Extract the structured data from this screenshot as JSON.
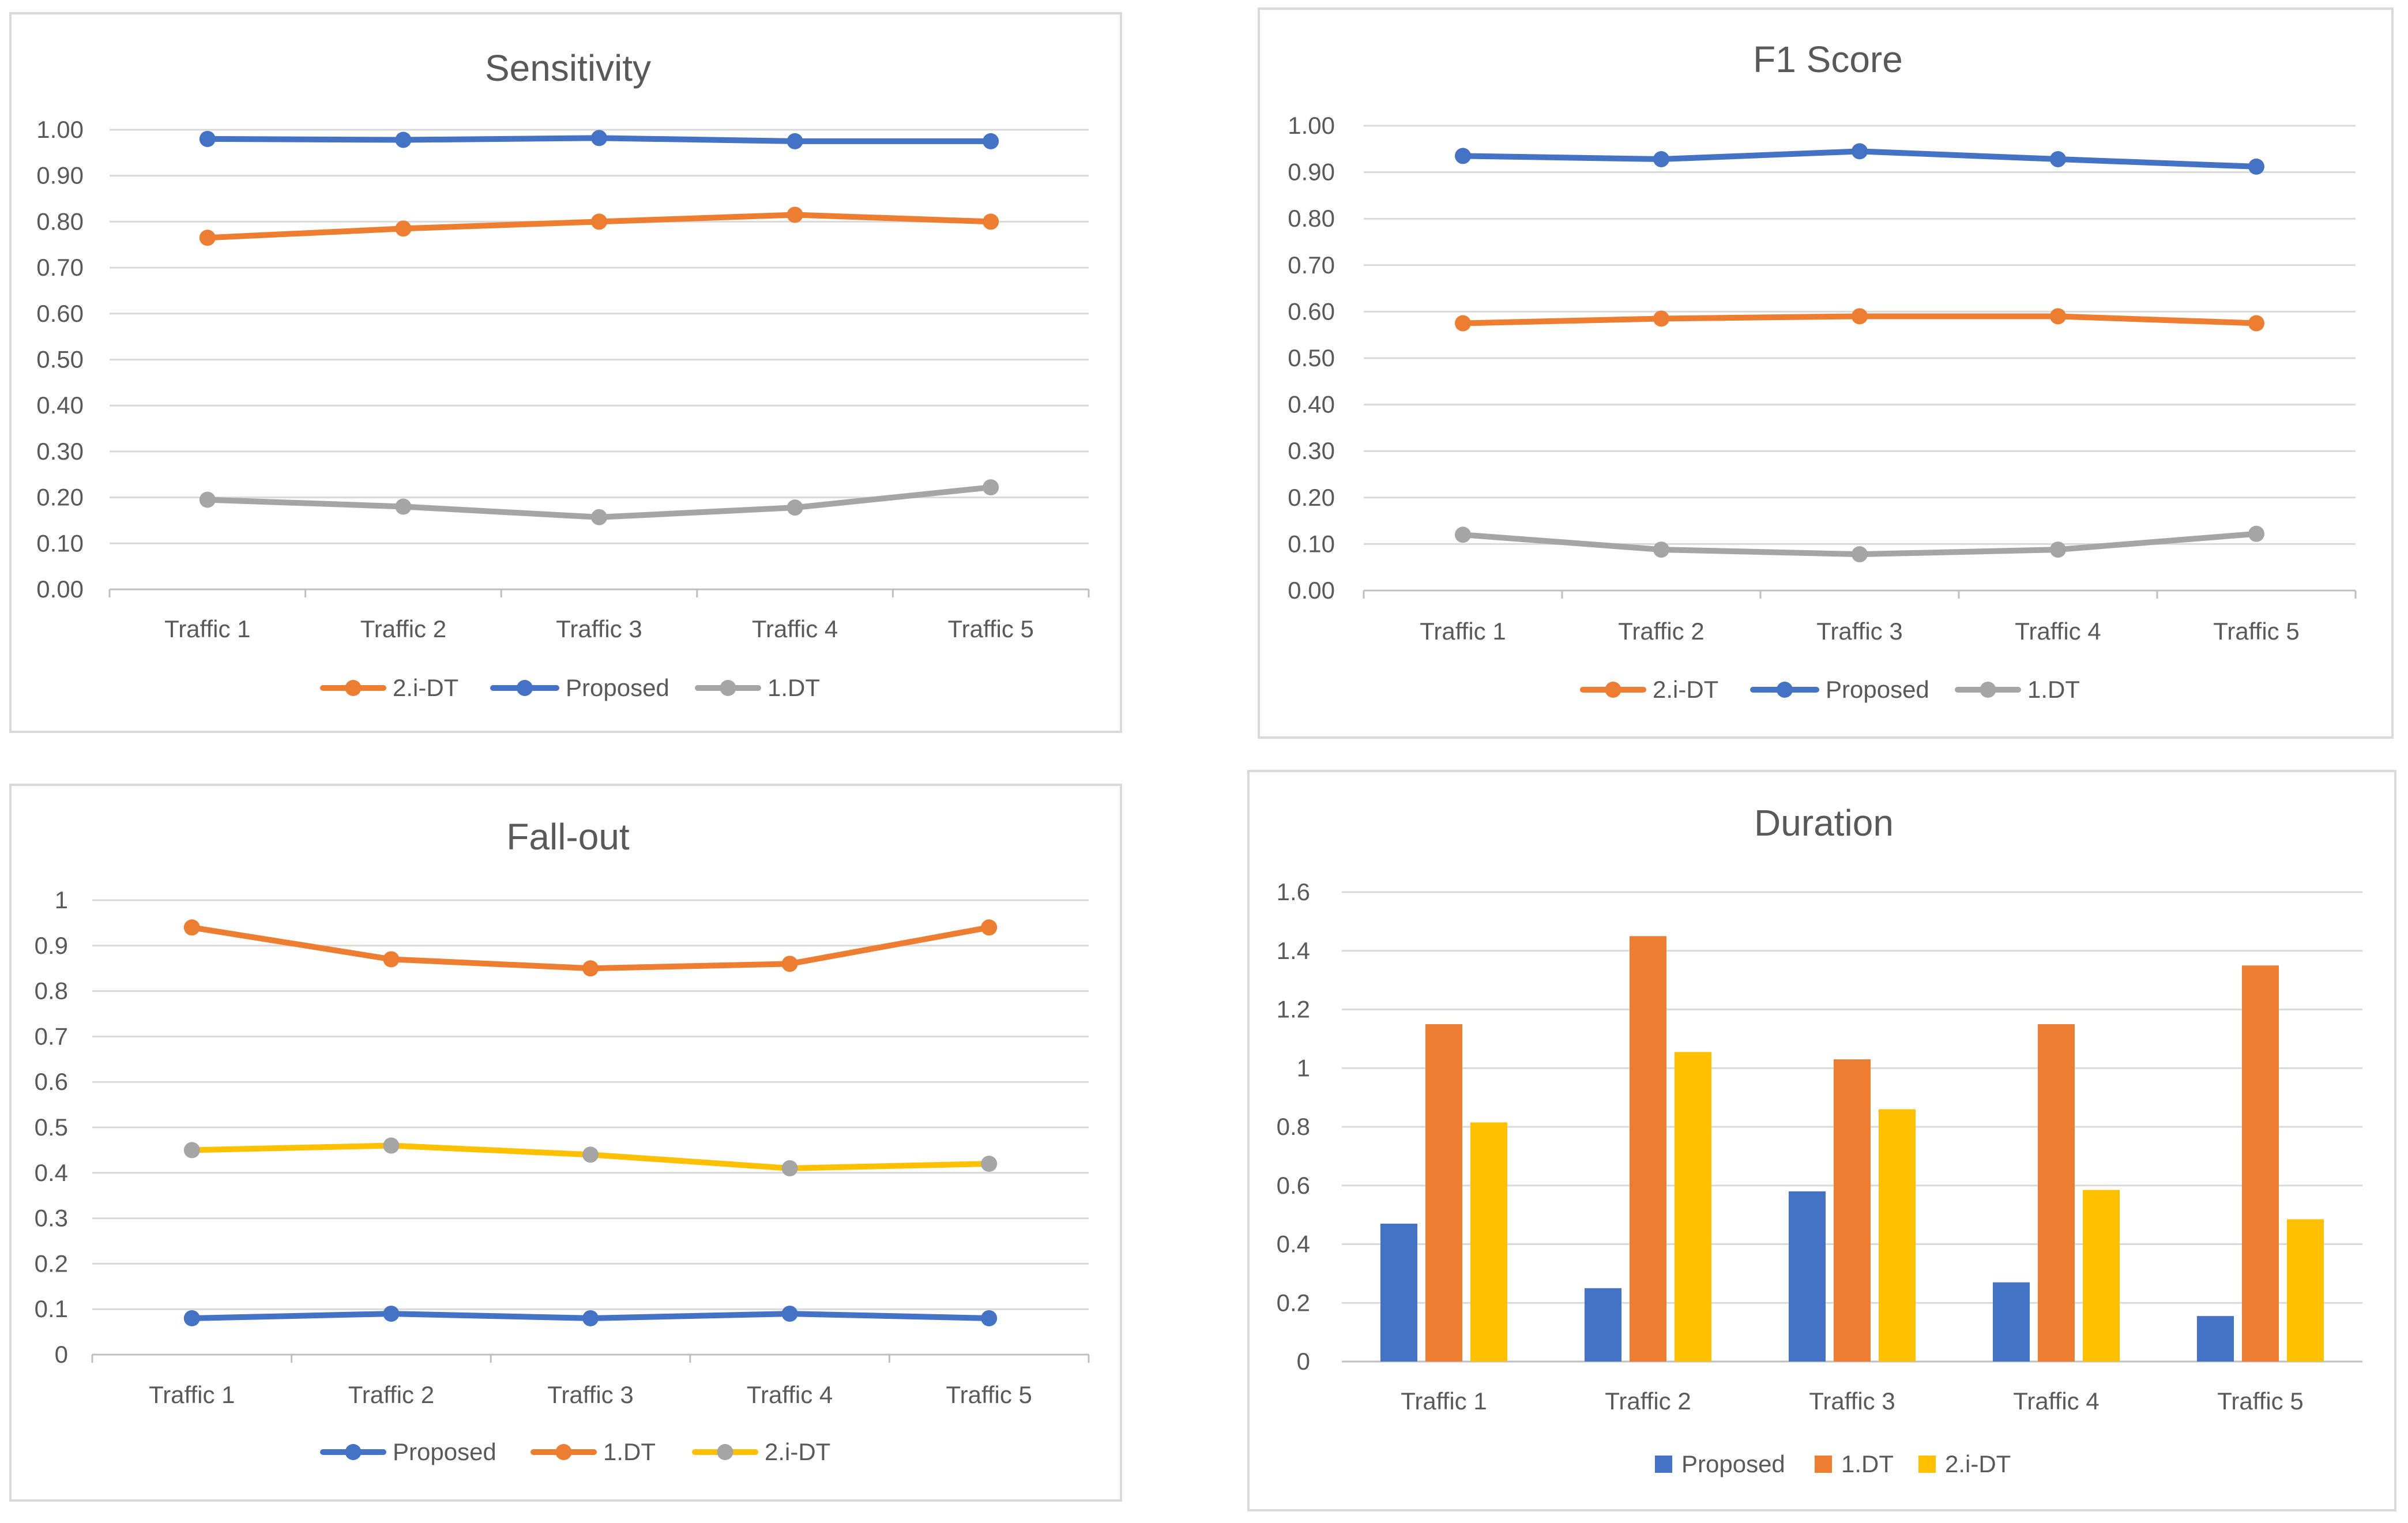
{
  "chart_data": [
    {
      "id": "sensitivity",
      "type": "line",
      "title": "Sensitivity",
      "categories": [
        "Traffic 1",
        "Traffic 2",
        "Traffic 3",
        "Traffic 4",
        "Traffic 5"
      ],
      "ylim": [
        0,
        1
      ],
      "yticks": [
        "0.00",
        "0.10",
        "0.20",
        "0.30",
        "0.40",
        "0.50",
        "0.60",
        "0.70",
        "0.80",
        "0.90",
        "1.00"
      ],
      "grid": true,
      "legend_position": "bottom",
      "series": [
        {
          "name": "2.i-DT",
          "color": "#ED7D31",
          "marker_color": "#ED7D31",
          "values": [
            0.765,
            0.785,
            0.8,
            0.815,
            0.8
          ]
        },
        {
          "name": "Proposed",
          "color": "#4472C4",
          "marker_color": "#4472C4",
          "values": [
            0.98,
            0.978,
            0.982,
            0.975,
            0.975
          ]
        },
        {
          "name": "1.DT",
          "color": "#A5A5A5",
          "marker_color": "#A5A5A5",
          "values": [
            0.195,
            0.18,
            0.157,
            0.178,
            0.222
          ]
        }
      ]
    },
    {
      "id": "f1",
      "type": "line",
      "title": "F1 Score",
      "categories": [
        "Traffic 1",
        "Traffic 2",
        "Traffic 3",
        "Traffic 4",
        "Traffic 5"
      ],
      "ylim": [
        0,
        1
      ],
      "yticks": [
        "0.00",
        "0.10",
        "0.20",
        "0.30",
        "0.40",
        "0.50",
        "0.60",
        "0.70",
        "0.80",
        "0.90",
        "1.00"
      ],
      "grid": true,
      "legend_position": "bottom",
      "series": [
        {
          "name": "2.i-DT",
          "color": "#ED7D31",
          "marker_color": "#ED7D31",
          "values": [
            0.575,
            0.585,
            0.59,
            0.59,
            0.575
          ]
        },
        {
          "name": "Proposed",
          "color": "#4472C4",
          "marker_color": "#4472C4",
          "values": [
            0.935,
            0.928,
            0.945,
            0.928,
            0.912
          ]
        },
        {
          "name": "1.DT",
          "color": "#A5A5A5",
          "marker_color": "#A5A5A5",
          "values": [
            0.12,
            0.088,
            0.078,
            0.088,
            0.122
          ]
        }
      ]
    },
    {
      "id": "fallout",
      "type": "line",
      "title": "Fall-out",
      "categories": [
        "Traffic 1",
        "Traffic 2",
        "Traffic 3",
        "Traffic 4",
        "Traffic 5"
      ],
      "ylim": [
        0,
        1
      ],
      "yticks": [
        "0",
        "0.1",
        "0.2",
        "0.3",
        "0.4",
        "0.5",
        "0.6",
        "0.7",
        "0.8",
        "0.9",
        "1"
      ],
      "grid": true,
      "legend_position": "bottom",
      "series": [
        {
          "name": "Proposed",
          "color": "#4472C4",
          "marker_color": "#4472C4",
          "values": [
            0.08,
            0.09,
            0.08,
            0.09,
            0.08
          ]
        },
        {
          "name": "1.DT",
          "color": "#ED7D31",
          "marker_color": "#ED7D31",
          "values": [
            0.94,
            0.87,
            0.85,
            0.86,
            0.94
          ]
        },
        {
          "name": "2.i-DT",
          "color": "#FFC000",
          "marker_color": "#A5A5A5",
          "values": [
            0.45,
            0.46,
            0.44,
            0.41,
            0.42
          ]
        }
      ]
    },
    {
      "id": "duration",
      "type": "bar",
      "title": "Duration",
      "categories": [
        "Traffic 1",
        "Traffic 2",
        "Traffic 3",
        "Traffic 4",
        "Traffic 5"
      ],
      "ylim": [
        0,
        1.6
      ],
      "yticks": [
        "0",
        "0.2",
        "0.4",
        "0.6",
        "0.8",
        "1",
        "1.2",
        "1.4",
        "1.6"
      ],
      "grid": true,
      "legend_position": "bottom",
      "series": [
        {
          "name": "Proposed",
          "color": "#4472C4",
          "values": [
            0.47,
            0.25,
            0.58,
            0.27,
            0.155
          ]
        },
        {
          "name": "1.DT",
          "color": "#ED7D31",
          "values": [
            1.15,
            1.45,
            1.03,
            1.15,
            1.35
          ]
        },
        {
          "name": "2.i-DT",
          "color": "#FFC000",
          "values": [
            0.815,
            1.055,
            0.86,
            0.585,
            0.485
          ]
        }
      ]
    }
  ]
}
